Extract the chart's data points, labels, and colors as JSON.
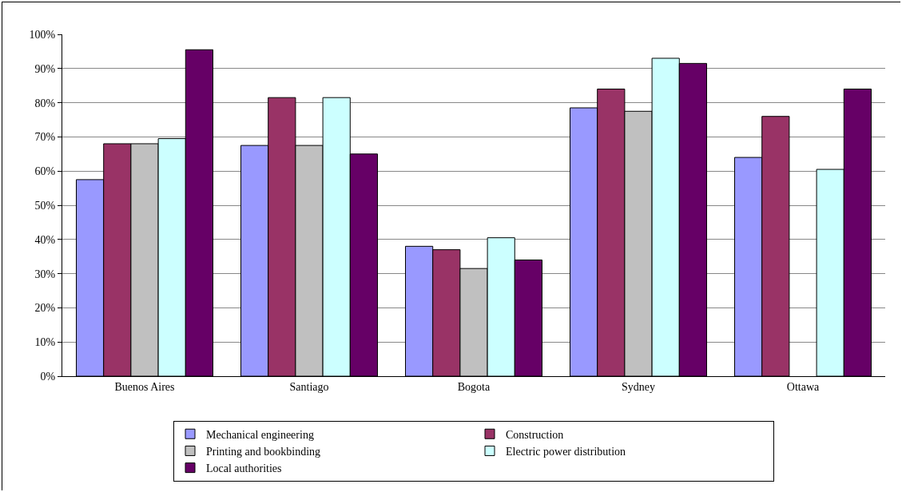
{
  "chart_data": {
    "type": "bar",
    "categories": [
      "Buenos Aires",
      "Santiago",
      "Bogota",
      "Sydney",
      "Ottawa"
    ],
    "series": [
      {
        "name": "Mechanical engineering",
        "color": "#9999ff",
        "values": [
          57.5,
          67.5,
          38,
          78.5,
          64
        ]
      },
      {
        "name": "Construction",
        "color": "#993366",
        "values": [
          68,
          81.5,
          37,
          84,
          76
        ]
      },
      {
        "name": "Printing and bookbinding",
        "color": "#c0c0c0",
        "values": [
          68,
          67.5,
          31.5,
          77.5,
          null
        ]
      },
      {
        "name": "Electric power distribution",
        "color": "#ccffff",
        "values": [
          69.5,
          81.5,
          40.5,
          93,
          60.5
        ]
      },
      {
        "name": "Local authorities",
        "color": "#660066",
        "values": [
          95.5,
          65,
          34,
          91.5,
          84
        ]
      }
    ],
    "ylim": [
      0,
      100
    ],
    "yticks": [
      {
        "value": 0,
        "label": "0%"
      },
      {
        "value": 10,
        "label": "10%"
      },
      {
        "value": 20,
        "label": "20%"
      },
      {
        "value": 30,
        "label": "30%"
      },
      {
        "value": 40,
        "label": "40%"
      },
      {
        "value": 50,
        "label": "50%"
      },
      {
        "value": 60,
        "label": "60%"
      },
      {
        "value": 70,
        "label": "70%"
      },
      {
        "value": 80,
        "label": "80%"
      },
      {
        "value": 90,
        "label": "90%"
      },
      {
        "value": 100,
        "label": "100%"
      }
    ],
    "grid": "y",
    "legend": "bottom"
  }
}
